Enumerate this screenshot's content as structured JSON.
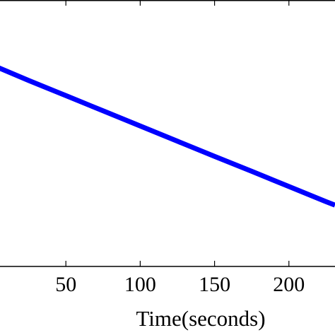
{
  "chart_data": {
    "type": "line",
    "title": "",
    "xlabel": "Time(seconds)",
    "ylabel": "",
    "x_tick_labels": [
      {
        "value": 50,
        "label": "50"
      },
      {
        "value": 100,
        "label": "100"
      },
      {
        "value": 150,
        "label": "150"
      },
      {
        "value": 200,
        "label": "200"
      }
    ],
    "y_tick_labels": [],
    "xlim": [
      0,
      231
    ],
    "ylim": [
      0,
      1
    ],
    "grid": false,
    "series": [
      {
        "name": "",
        "color": "#0000ff",
        "x": [
          0,
          25,
          50,
          75,
          100,
          125,
          150,
          175,
          200,
          225,
          231
        ],
        "y": [
          0.757,
          0.698,
          0.641,
          0.584,
          0.527,
          0.47,
          0.413,
          0.357,
          0.3,
          0.243,
          0.23
        ]
      }
    ]
  }
}
